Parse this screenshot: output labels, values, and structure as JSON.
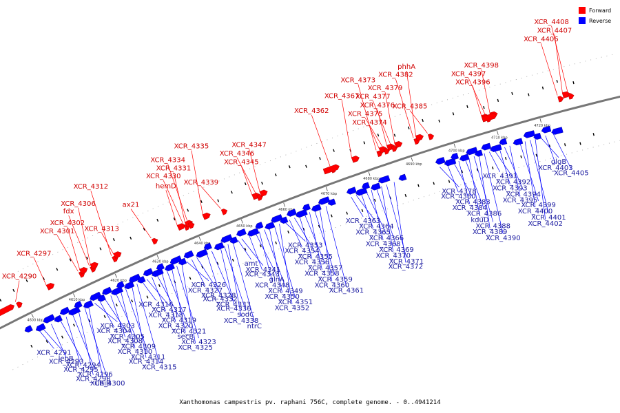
{
  "caption": "Xanthomonas campestris pv. raphani 756C, complete genome. - 0..4941214",
  "legend": [
    {
      "label": "Forward",
      "color": "#ff0000"
    },
    {
      "label": "Reverse",
      "color": "#0000ff"
    }
  ],
  "colors": {
    "forward": "#ff0000",
    "reverse": "#0000ff",
    "axis": "#777777"
  },
  "kbp_ticks": [
    {
      "label": "4600 kbp",
      "pos": 0.061
    },
    {
      "label": "4610 kbp",
      "pos": 0.128
    },
    {
      "label": "4620 kbp",
      "pos": 0.195
    },
    {
      "label": "4630 kbp",
      "pos": 0.262
    },
    {
      "label": "4640 kbp",
      "pos": 0.329
    },
    {
      "label": "4650 kbp",
      "pos": 0.396
    },
    {
      "label": "4660 kbp",
      "pos": 0.463
    },
    {
      "label": "4670 kbp",
      "pos": 0.53
    },
    {
      "label": "4680 kbp",
      "pos": 0.597
    },
    {
      "label": "4690 kbp",
      "pos": 0.664
    },
    {
      "label": "4700 kbp",
      "pos": 0.731
    },
    {
      "label": "4710 kbp",
      "pos": 0.798
    },
    {
      "label": "4720 kbp",
      "pos": 0.865
    }
  ],
  "forward_labels": [
    {
      "text": "XCR_4290",
      "pos": 0.048
    },
    {
      "text": "XCR_4297",
      "pos": 0.098
    },
    {
      "text": "XCR_4301",
      "pos": 0.148
    },
    {
      "text": "XCR_4302",
      "pos": 0.151
    },
    {
      "text": "fdx",
      "pos": 0.166
    },
    {
      "text": "XCR_4306",
      "pos": 0.168
    },
    {
      "text": "XCR_4312",
      "pos": 0.201
    },
    {
      "text": "XCR_4313",
      "pos": 0.205
    },
    {
      "text": "ax21",
      "pos": 0.264
    },
    {
      "text": "hemD",
      "pos": 0.306
    },
    {
      "text": "XCR_4330",
      "pos": 0.315
    },
    {
      "text": "XCR_4331",
      "pos": 0.318
    },
    {
      "text": "XCR_4334",
      "pos": 0.322
    },
    {
      "text": "XCR_4335",
      "pos": 0.346
    },
    {
      "text": "XCR_4339",
      "pos": 0.374
    },
    {
      "text": "XCR_4345",
      "pos": 0.424
    },
    {
      "text": "XCR_4346",
      "pos": 0.43
    },
    {
      "text": "XCR_4347",
      "pos": 0.436
    },
    {
      "text": "XCR_4362",
      "pos": 0.546
    },
    {
      "text": "XCR_4367",
      "pos": 0.58
    },
    {
      "text": "XCR_4373",
      "pos": 0.618
    },
    {
      "text": "XCR_4374",
      "pos": 0.623
    },
    {
      "text": "XCR_4375",
      "pos": 0.629
    },
    {
      "text": "XCR_4376",
      "pos": 0.635
    },
    {
      "text": "XCR_4377",
      "pos": 0.641
    },
    {
      "text": "XCR_4379",
      "pos": 0.647
    },
    {
      "text": "XCR_4382",
      "pos": 0.676
    },
    {
      "text": "phhA",
      "pos": 0.68
    },
    {
      "text": "XCR_4385",
      "pos": 0.698
    },
    {
      "text": "XCR_4396",
      "pos": 0.782
    },
    {
      "text": "XCR_4397",
      "pos": 0.788
    },
    {
      "text": "XCR_4398",
      "pos": 0.795
    },
    {
      "text": "XCR_4406",
      "pos": 0.899
    },
    {
      "text": "XCR_4407",
      "pos": 0.907
    },
    {
      "text": "XCR_4408",
      "pos": 0.915
    }
  ],
  "reverse_labels": [
    {
      "text": "XCR_4291",
      "pos": 0.06
    },
    {
      "text": "lepB",
      "pos": 0.066
    },
    {
      "text": "XCR_4293",
      "pos": 0.08
    },
    {
      "text": "XCR_4294",
      "pos": 0.094
    },
    {
      "text": "XCR_4295",
      "pos": 0.104
    },
    {
      "text": "XCR_4296",
      "pos": 0.114
    },
    {
      "text": "XCR_4298",
      "pos": 0.124
    },
    {
      "text": "XCR_4300",
      "pos": 0.134
    },
    {
      "text": "ubiB",
      "pos": 0.14
    },
    {
      "text": "XCR_4303",
      "pos": 0.15
    },
    {
      "text": "XCR_4304",
      "pos": 0.158
    },
    {
      "text": "XCR_4305",
      "pos": 0.166
    },
    {
      "text": "XCR_4308",
      "pos": 0.176
    },
    {
      "text": "XCR_4309",
      "pos": 0.184
    },
    {
      "text": "XCR_4310",
      "pos": 0.192
    },
    {
      "text": "XCR_4311",
      "pos": 0.2
    },
    {
      "text": "XCR_4314",
      "pos": 0.21
    },
    {
      "text": "XCR_4315",
      "pos": 0.218
    },
    {
      "text": "XCR_4316",
      "pos": 0.226
    },
    {
      "text": "XCR_4317",
      "pos": 0.234
    },
    {
      "text": "XCR_4318",
      "pos": 0.242
    },
    {
      "text": "XCR_4319",
      "pos": 0.25
    },
    {
      "text": "XCR_4320",
      "pos": 0.258
    },
    {
      "text": "XCR_4321",
      "pos": 0.266
    },
    {
      "text": "secB",
      "pos": 0.274
    },
    {
      "text": "XCR_4323",
      "pos": 0.282
    },
    {
      "text": "XCR_4325",
      "pos": 0.29
    },
    {
      "text": "XCR_4326",
      "pos": 0.298
    },
    {
      "text": "XCR_4327",
      "pos": 0.306
    },
    {
      "text": "XCR_4328",
      "pos": 0.314
    },
    {
      "text": "XCR_4332",
      "pos": 0.33
    },
    {
      "text": "XCR_4333",
      "pos": 0.338
    },
    {
      "text": "XCR_4336",
      "pos": 0.352
    },
    {
      "text": "sodC",
      "pos": 0.358
    },
    {
      "text": "XCR_4338",
      "pos": 0.364
    },
    {
      "text": "ntrC",
      "pos": 0.372
    },
    {
      "text": "amt",
      "pos": 0.38
    },
    {
      "text": "XCR_4341",
      "pos": 0.386
    },
    {
      "text": "XCR_4343",
      "pos": 0.398
    },
    {
      "text": "glnA",
      "pos": 0.408
    },
    {
      "text": "XCR_4348",
      "pos": 0.414
    },
    {
      "text": "XCR_4349",
      "pos": 0.422
    },
    {
      "text": "XCR_4350",
      "pos": 0.43
    },
    {
      "text": "XCR_4351",
      "pos": 0.438
    },
    {
      "text": "XCR_4352",
      "pos": 0.446
    },
    {
      "text": "XCR_4353",
      "pos": 0.454
    },
    {
      "text": "XCR_4354",
      "pos": 0.462
    },
    {
      "text": "XCR_4355",
      "pos": 0.47
    },
    {
      "text": "XCR_4356",
      "pos": 0.478
    },
    {
      "text": "XCR_4357",
      "pos": 0.486
    },
    {
      "text": "XCR_4358",
      "pos": 0.494
    },
    {
      "text": "XCR_4359",
      "pos": 0.502
    },
    {
      "text": "XCR_4360",
      "pos": 0.51
    },
    {
      "text": "XCR_4361",
      "pos": 0.52
    },
    {
      "text": "XCR_4363",
      "pos": 0.56
    },
    {
      "text": "XCR_4364",
      "pos": 0.568
    },
    {
      "text": "XCR_4365",
      "pos": 0.576
    },
    {
      "text": "XCR_4366",
      "pos": 0.584
    },
    {
      "text": "XCR_4368",
      "pos": 0.592
    },
    {
      "text": "XCR_4369",
      "pos": 0.6
    },
    {
      "text": "XCR_4370",
      "pos": 0.608
    },
    {
      "text": "XCR_4371",
      "pos": 0.616
    },
    {
      "text": "XCR_4372",
      "pos": 0.628
    },
    {
      "text": "XCR_4378",
      "pos": 0.7
    },
    {
      "text": "XCR_4380",
      "pos": 0.712
    },
    {
      "text": "XCR_4383",
      "pos": 0.722
    },
    {
      "text": "XCR_4384",
      "pos": 0.73
    },
    {
      "text": "XCR_4386",
      "pos": 0.74
    },
    {
      "text": "kduD",
      "pos": 0.746
    },
    {
      "text": "XCR_4388",
      "pos": 0.754
    },
    {
      "text": "XCR_4389",
      "pos": 0.762
    },
    {
      "text": "XCR_4390",
      "pos": 0.77
    },
    {
      "text": "XCR_4391",
      "pos": 0.778
    },
    {
      "text": "XCR_4392",
      "pos": 0.786
    },
    {
      "text": "XCR_4393",
      "pos": 0.794
    },
    {
      "text": "XCR_4394",
      "pos": 0.802
    },
    {
      "text": "XCR_4395",
      "pos": 0.81
    },
    {
      "text": "XCR_4399",
      "pos": 0.826
    },
    {
      "text": "XCR_4400",
      "pos": 0.834
    },
    {
      "text": "XCR_4401",
      "pos": 0.842
    },
    {
      "text": "XCR_4402",
      "pos": 0.85
    },
    {
      "text": "glgB",
      "pos": 0.858
    },
    {
      "text": "XCR_4403",
      "pos": 0.866
    },
    {
      "text": "XCR_4405",
      "pos": 0.878
    }
  ]
}
